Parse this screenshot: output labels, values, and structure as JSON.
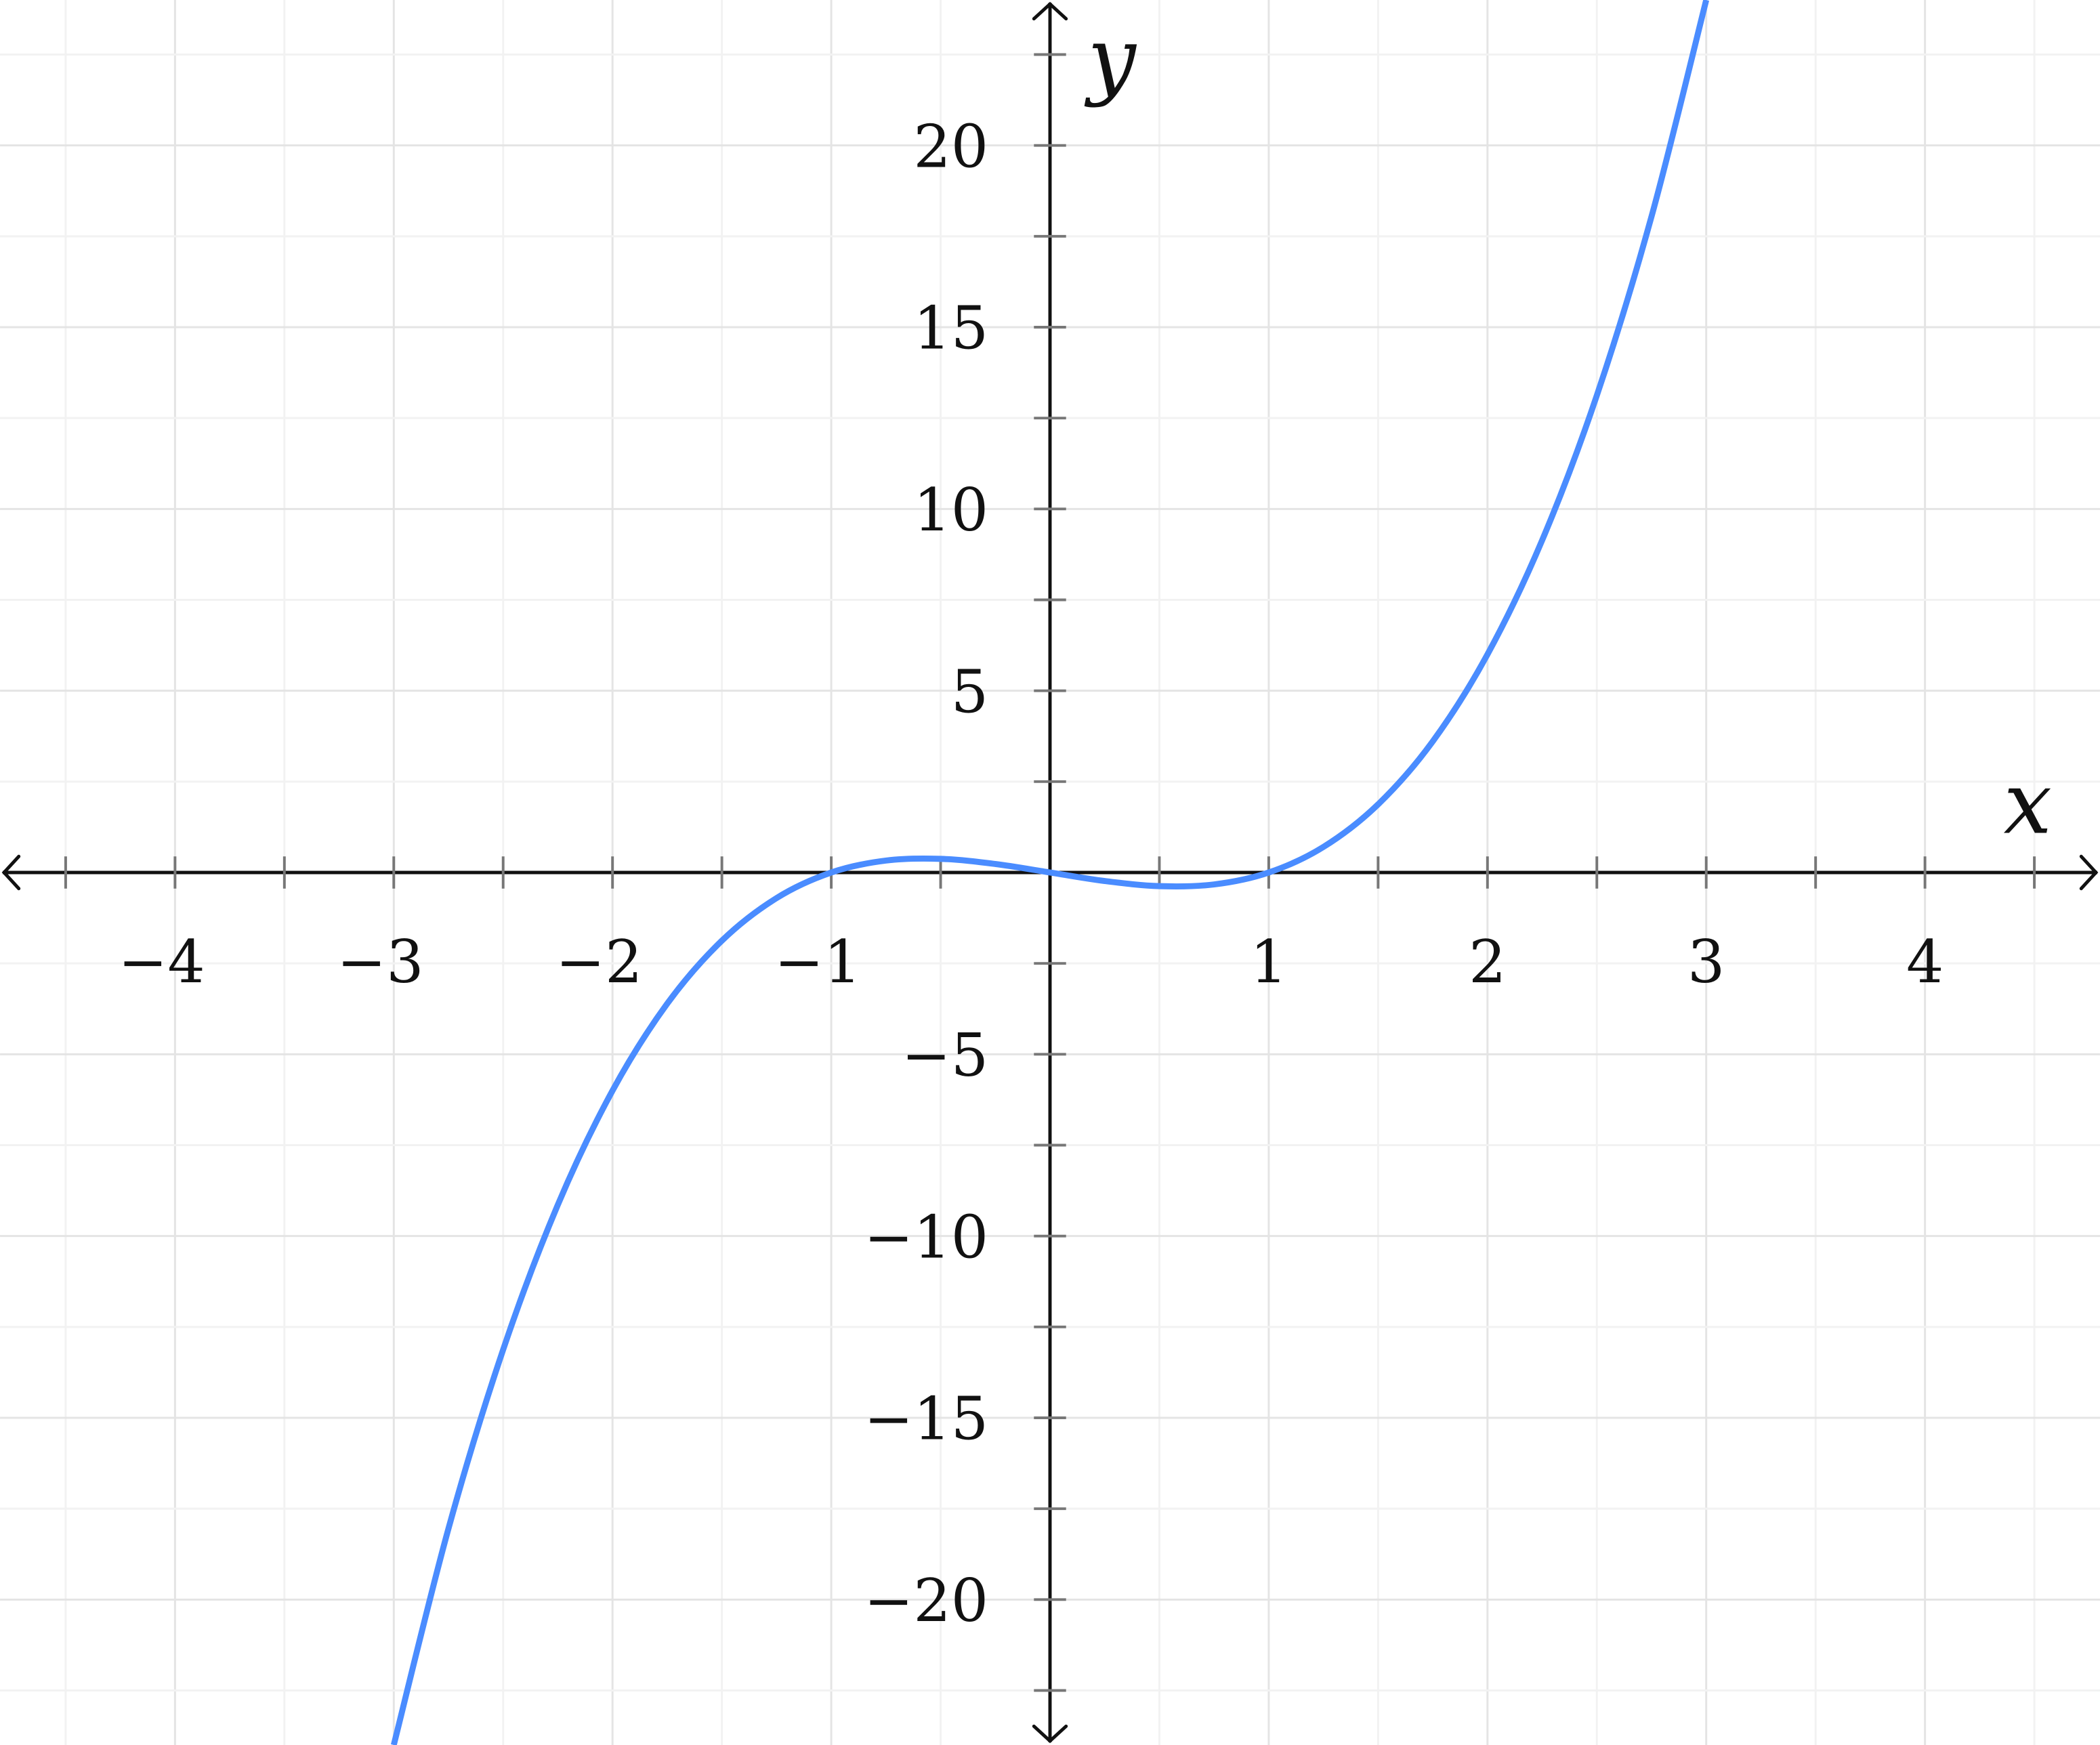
{
  "chart_data": {
    "type": "line",
    "title": "",
    "xlabel": "x",
    "ylabel": "y",
    "xlim": [
      -4.8,
      4.8
    ],
    "ylim": [
      -24,
      24
    ],
    "grid": true,
    "x_ticks": [
      -4,
      -3,
      -2,
      -1,
      1,
      2,
      3,
      4
    ],
    "x_tick_labels": [
      "−4",
      "−3",
      "−2",
      "−1",
      "1",
      "2",
      "3",
      "4"
    ],
    "y_ticks": [
      -20,
      -15,
      -10,
      -5,
      5,
      10,
      15,
      20
    ],
    "y_tick_labels": [
      "−20",
      "−15",
      "−10",
      "−5",
      "5",
      "10",
      "15",
      "20"
    ],
    "series": [
      {
        "color": "#4a8cff",
        "x": [
          -3,
          -2.75,
          -2.5,
          -2.25,
          -2,
          -1.75,
          -1.5,
          -1.25,
          -1,
          -0.75,
          -0.5,
          -0.25,
          0,
          0.25,
          0.5,
          0.75,
          1,
          1.25,
          1.5,
          1.75,
          2,
          2.25,
          2.5,
          2.75,
          3
        ],
        "y": [
          -24,
          -18.047,
          -13.125,
          -9.141,
          -6,
          -3.609,
          -1.875,
          -0.703,
          0,
          0.328,
          0.375,
          0.234,
          0,
          -0.234,
          -0.375,
          -0.328,
          0,
          0.703,
          1.875,
          3.609,
          6,
          9.141,
          13.125,
          18.047,
          24
        ]
      }
    ]
  }
}
